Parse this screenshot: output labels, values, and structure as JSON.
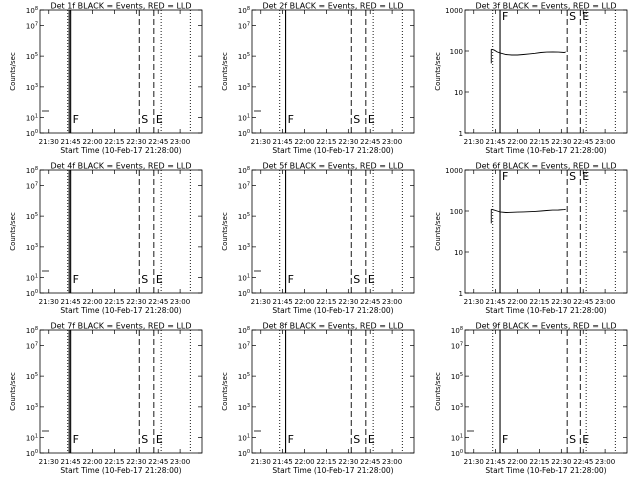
{
  "page": {
    "background": "#ffffff",
    "ink": "#000000"
  },
  "x_axis": {
    "ticks": [
      "21:30",
      "21:45",
      "22:00",
      "22:15",
      "22:30",
      "22:45",
      "23:00"
    ],
    "tick_minutes": [
      1290,
      1305,
      1320,
      1335,
      1350,
      1365,
      1380
    ],
    "range_minutes": [
      1284,
      1395
    ],
    "label": "Start Time (10-Feb-17 21:28:00)"
  },
  "y_axis_label": "Counts/sec",
  "chart_data": [
    {
      "type": "line",
      "title": "Det 1f BLACK = Events, RED = LLD",
      "ylabel": "Counts/sec",
      "xlabel": "Start Time (10-Feb-17 21:28:00)",
      "yscale": "log",
      "ylim": [
        1,
        100000000
      ],
      "ytick_values": [
        1,
        10,
        1000,
        100000,
        10000000,
        100000000
      ],
      "ytick_labels": [
        "10^0",
        "10^1",
        "10^3",
        "10^5",
        "10^7",
        "10^8"
      ],
      "dotted_lines": [
        "21:43",
        "22:47",
        "23:07"
      ],
      "solid_lines": [
        "21:44",
        "21:45"
      ],
      "dashed_lines": [
        "22:32",
        "22:42"
      ],
      "markers": [
        {
          "text": "F",
          "x": "21:45"
        },
        {
          "text": "S",
          "x": "22:32"
        },
        {
          "text": "E",
          "x": "22:42"
        }
      ],
      "series": []
    },
    {
      "type": "line",
      "title": "Det 2f BLACK = Events, RED = LLD",
      "ylabel": "Counts/sec",
      "xlabel": "Start Time (10-Feb-17 21:28:00)",
      "yscale": "log",
      "ylim": [
        1,
        100000000
      ],
      "ytick_values": [
        1,
        10,
        1000,
        100000,
        10000000,
        100000000
      ],
      "ytick_labels": [
        "10^0",
        "10^1",
        "10^3",
        "10^5",
        "10^7",
        "10^8"
      ],
      "dotted_lines": [
        "21:43",
        "22:47",
        "23:07"
      ],
      "solid_lines": [
        "21:47"
      ],
      "dashed_lines": [
        "22:32",
        "22:42"
      ],
      "markers": [
        {
          "text": "F",
          "x": "21:47"
        },
        {
          "text": "S",
          "x": "22:32"
        },
        {
          "text": "E",
          "x": "22:42"
        }
      ],
      "series": []
    },
    {
      "type": "line",
      "title": "Det 3f BLACK = Events, RED = LLD",
      "ylabel": "Counts/sec",
      "xlabel": "Start Time (10-Feb-17 21:28:00)",
      "yscale": "log",
      "ylim": [
        1,
        1000
      ],
      "ytick_values": [
        1,
        10,
        100,
        1000
      ],
      "ytick_labels": [
        "1",
        "10",
        "100",
        "1000"
      ],
      "dotted_lines": [
        "21:43",
        "22:47",
        "23:07"
      ],
      "solid_lines": [
        "21:48"
      ],
      "dashed_lines": [
        "22:34",
        "22:43"
      ],
      "markers": [
        {
          "text": "F",
          "x": "21:48"
        },
        {
          "text": "S",
          "x": "22:34"
        },
        {
          "text": "E",
          "x": "22:43"
        }
      ],
      "series": [
        {
          "x": [
            "21:42",
            "21:44",
            "21:46",
            "21:48",
            "21:52",
            "21:56",
            "22:00",
            "22:04",
            "22:08",
            "22:12",
            "22:16",
            "22:20",
            "22:24",
            "22:28",
            "22:32",
            "22:33"
          ],
          "y": [
            110,
            105,
            95,
            90,
            82,
            80,
            80,
            82,
            85,
            88,
            92,
            94,
            95,
            94,
            92,
            95
          ],
          "drop_to": 50
        }
      ]
    },
    {
      "type": "line",
      "title": "Det 4f BLACK = Events, RED = LLD",
      "ylabel": "Counts/sec",
      "xlabel": "Start Time (10-Feb-17 21:28:00)",
      "yscale": "log",
      "ylim": [
        1,
        100000000
      ],
      "ytick_values": [
        1,
        10,
        1000,
        100000,
        10000000,
        100000000
      ],
      "ytick_labels": [
        "10^0",
        "10^1",
        "10^3",
        "10^5",
        "10^7",
        "10^8"
      ],
      "dotted_lines": [
        "21:43",
        "22:47",
        "23:07"
      ],
      "solid_lines": [
        "21:44",
        "21:45"
      ],
      "dashed_lines": [
        "22:32",
        "22:42"
      ],
      "markers": [
        {
          "text": "F",
          "x": "21:45"
        },
        {
          "text": "S",
          "x": "22:32"
        },
        {
          "text": "E",
          "x": "22:42"
        }
      ],
      "series": []
    },
    {
      "type": "line",
      "title": "Det 5f BLACK = Events, RED = LLD",
      "ylabel": "Counts/sec",
      "xlabel": "Start Time (10-Feb-17 21:28:00)",
      "yscale": "log",
      "ylim": [
        1,
        100000000
      ],
      "ytick_values": [
        1,
        10,
        1000,
        100000,
        10000000,
        100000000
      ],
      "ytick_labels": [
        "10^0",
        "10^1",
        "10^3",
        "10^5",
        "10^7",
        "10^8"
      ],
      "dotted_lines": [
        "21:43",
        "22:47",
        "23:07"
      ],
      "solid_lines": [
        "21:47"
      ],
      "dashed_lines": [
        "22:32",
        "22:42"
      ],
      "markers": [
        {
          "text": "F",
          "x": "21:47"
        },
        {
          "text": "S",
          "x": "22:32"
        },
        {
          "text": "E",
          "x": "22:42"
        }
      ],
      "series": []
    },
    {
      "type": "line",
      "title": "Det 6f BLACK = Events, RED = LLD",
      "ylabel": "Counts/sec",
      "xlabel": "Start Time (10-Feb-17 21:28:00)",
      "yscale": "log",
      "ylim": [
        1,
        1000
      ],
      "ytick_values": [
        1,
        10,
        100,
        1000
      ],
      "ytick_labels": [
        "1",
        "10",
        "100",
        "1000"
      ],
      "dotted_lines": [
        "21:43",
        "22:47",
        "23:07"
      ],
      "solid_lines": [
        "21:48"
      ],
      "dashed_lines": [
        "22:34",
        "22:43"
      ],
      "markers": [
        {
          "text": "F",
          "x": "21:48"
        },
        {
          "text": "S",
          "x": "22:34"
        },
        {
          "text": "E",
          "x": "22:43"
        }
      ],
      "series": [
        {
          "x": [
            "21:42",
            "21:44",
            "21:46",
            "21:48",
            "21:52",
            "21:56",
            "22:00",
            "22:04",
            "22:08",
            "22:12",
            "22:16",
            "22:20",
            "22:24",
            "22:28",
            "22:32",
            "22:33"
          ],
          "y": [
            110,
            105,
            100,
            95,
            92,
            93,
            94,
            95,
            96,
            98,
            100,
            103,
            105,
            106,
            108,
            110
          ],
          "drop_to": 50
        }
      ]
    },
    {
      "type": "line",
      "title": "Det 7f BLACK = Events, RED = LLD",
      "ylabel": "Counts/sec",
      "xlabel": "Start Time (10-Feb-17 21:28:00)",
      "yscale": "log",
      "ylim": [
        1,
        100000000
      ],
      "ytick_values": [
        1,
        10,
        1000,
        100000,
        10000000,
        100000000
      ],
      "ytick_labels": [
        "10^0",
        "10^1",
        "10^3",
        "10^5",
        "10^7",
        "10^8"
      ],
      "dotted_lines": [
        "21:43",
        "22:47",
        "23:07"
      ],
      "solid_lines": [
        "21:44",
        "21:45"
      ],
      "dashed_lines": [
        "22:32",
        "22:42"
      ],
      "markers": [
        {
          "text": "F",
          "x": "21:45"
        },
        {
          "text": "S",
          "x": "22:32"
        },
        {
          "text": "E",
          "x": "22:42"
        }
      ],
      "series": []
    },
    {
      "type": "line",
      "title": "Det 8f BLACK = Events, RED = LLD",
      "ylabel": "Counts/sec",
      "xlabel": "Start Time (10-Feb-17 21:28:00)",
      "yscale": "log",
      "ylim": [
        1,
        100000000
      ],
      "ytick_values": [
        1,
        10,
        1000,
        100000,
        10000000,
        100000000
      ],
      "ytick_labels": [
        "10^0",
        "10^1",
        "10^3",
        "10^5",
        "10^7",
        "10^8"
      ],
      "dotted_lines": [
        "21:43",
        "22:47",
        "23:07"
      ],
      "solid_lines": [
        "21:47"
      ],
      "dashed_lines": [
        "22:32",
        "22:42"
      ],
      "markers": [
        {
          "text": "F",
          "x": "21:47"
        },
        {
          "text": "S",
          "x": "22:32"
        },
        {
          "text": "E",
          "x": "22:42"
        }
      ],
      "series": []
    },
    {
      "type": "line",
      "title": "Det 9f BLACK = Events, RED = LLD",
      "ylabel": "Counts/sec",
      "xlabel": "Start Time (10-Feb-17 21:28:00)",
      "yscale": "log",
      "ylim": [
        1,
        100000000
      ],
      "ytick_values": [
        1,
        10,
        1000,
        100000,
        10000000,
        100000000
      ],
      "ytick_labels": [
        "10^0",
        "10^1",
        "10^3",
        "10^5",
        "10^7",
        "10^8"
      ],
      "dotted_lines": [
        "21:43",
        "22:47",
        "23:07"
      ],
      "solid_lines": [
        "21:48"
      ],
      "dashed_lines": [
        "22:34",
        "22:43"
      ],
      "markers": [
        {
          "text": "F",
          "x": "21:48"
        },
        {
          "text": "S",
          "x": "22:34"
        },
        {
          "text": "E",
          "x": "22:43"
        }
      ],
      "series": []
    }
  ]
}
